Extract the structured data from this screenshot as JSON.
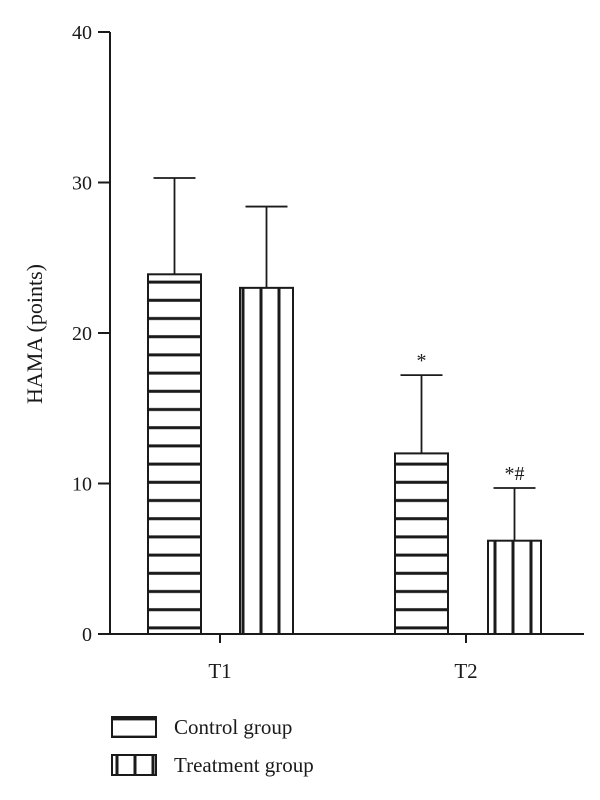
{
  "chart_data": {
    "type": "bar",
    "categories": [
      "T1",
      "T2"
    ],
    "ylabel": "HAMA (points)",
    "ylim": [
      0,
      40
    ],
    "yticks": [
      0,
      10,
      20,
      30,
      40
    ],
    "grid": false,
    "legend_position": "bottom-left",
    "series": [
      {
        "name": "Control group",
        "pattern": "horizontal-stripes",
        "values": [
          23.9,
          12.0
        ],
        "errors": [
          6.4,
          5.2
        ],
        "annotations": [
          "",
          "*"
        ]
      },
      {
        "name": "Treatment group",
        "pattern": "vertical-stripes",
        "values": [
          23.0,
          6.2
        ],
        "errors": [
          5.4,
          3.5
        ],
        "annotations": [
          "",
          "*#"
        ]
      }
    ],
    "colors": {
      "ink": "#1a1a1a",
      "fill": "#ffffff"
    }
  }
}
